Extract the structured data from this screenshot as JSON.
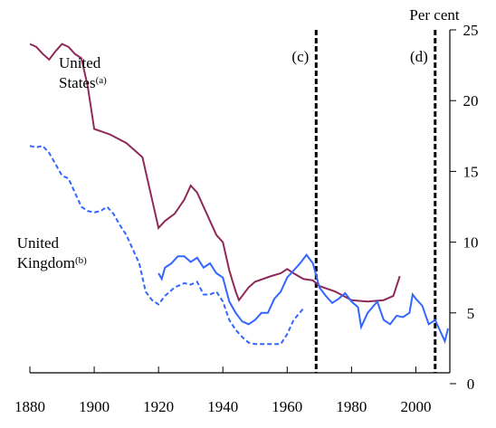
{
  "chart_data": {
    "type": "line",
    "y_axis_label": "Per cent",
    "xlim": [
      1880,
      2010
    ],
    "xticks": [
      1880,
      1900,
      1920,
      1940,
      1960,
      1980,
      2000
    ],
    "ylim": [
      0,
      25
    ],
    "yticks": [
      0,
      5,
      10,
      15,
      20,
      25
    ],
    "series": [
      {
        "color": "#8e2a5a",
        "dash": false,
        "x": [
          1880,
          1882,
          1884,
          1886,
          1888,
          1890,
          1892,
          1894,
          1896,
          1898,
          1900,
          1905,
          1910,
          1915,
          1918,
          1920,
          1922,
          1925,
          1928,
          1930,
          1932,
          1935,
          1938,
          1940,
          1942,
          1944,
          1945,
          1948,
          1950,
          1955,
          1958,
          1960,
          1962,
          1965,
          1968,
          1970,
          1975,
          1980,
          1985,
          1990,
          1993,
          1995
        ],
        "values": [
          24,
          23.8,
          23.3,
          22.9,
          23.5,
          24,
          23.8,
          23.3,
          23,
          21,
          18,
          17.6,
          17,
          16,
          13,
          11,
          11.5,
          12,
          13,
          14,
          13.5,
          12,
          10.5,
          10,
          8,
          6.5,
          5.9,
          6.8,
          7.2,
          7.6,
          7.8,
          8.1,
          7.8,
          7.4,
          7.3,
          6.9,
          6.5,
          5.9,
          5.8,
          5.9,
          6.2,
          7.6
        ]
      },
      {
        "color": "#3366ff",
        "dash": true,
        "x": [
          1880,
          1882,
          1884,
          1886,
          1888,
          1890,
          1892,
          1894,
          1896,
          1898,
          1900,
          1902,
          1904,
          1906,
          1908,
          1910,
          1912,
          1914,
          1916,
          1918,
          1920,
          1922,
          1925,
          1928,
          1930,
          1932,
          1934,
          1936,
          1938,
          1940,
          1942,
          1944,
          1946,
          1948,
          1950,
          1955,
          1958,
          1960,
          1962,
          1965
        ],
        "values": [
          16.8,
          16.7,
          16.8,
          16.3,
          15.5,
          14.7,
          14.5,
          13.5,
          12.5,
          12.2,
          12.1,
          12.2,
          12.5,
          12,
          11.2,
          10.5,
          9.5,
          8.5,
          6.5,
          5.9,
          5.6,
          6.2,
          6.8,
          7.1,
          7.0,
          7.2,
          6.3,
          6.3,
          6.5,
          5.8,
          4.5,
          3.8,
          3.3,
          2.9,
          2.8,
          2.8,
          2.8,
          3.5,
          4.5,
          5.3
        ]
      },
      {
        "color": "#3366ff",
        "dash": false,
        "x": [
          1920,
          1921,
          1922,
          1924,
          1926,
          1928,
          1930,
          1932,
          1934,
          1936,
          1938,
          1940,
          1942,
          1944,
          1946,
          1948,
          1950,
          1952,
          1954,
          1956,
          1958,
          1960,
          1962,
          1964,
          1966,
          1968,
          1970,
          1972,
          1974,
          1976,
          1978,
          1980,
          1982,
          1983,
          1985,
          1988,
          1990,
          1992,
          1994,
          1996,
          1998,
          1999,
          2000,
          2002,
          2004,
          2006,
          2008,
          2009,
          2010
        ],
        "values": [
          7.8,
          7.4,
          8.2,
          8.5,
          9,
          9,
          8.6,
          8.9,
          8.2,
          8.5,
          7.8,
          7.5,
          5.8,
          5,
          4.4,
          4.2,
          4.5,
          5,
          5,
          6,
          6.5,
          7.5,
          8,
          8.5,
          9.1,
          8.5,
          6.8,
          6.2,
          5.7,
          6,
          6.4,
          5.8,
          5.4,
          4,
          5,
          5.8,
          4.5,
          4.2,
          4.8,
          4.7,
          5,
          6.3,
          6,
          5.5,
          4.2,
          4.5,
          3.5,
          3.0,
          3.9
        ]
      }
    ],
    "annotations": [
      {
        "lines": [
          "United",
          "States"
        ],
        "note": "(a)",
        "x": 1889,
        "y": 22.3
      },
      {
        "lines": [
          "United",
          "Kingdom"
        ],
        "note": "(b)",
        "x": 1876,
        "y": 9.6
      }
    ],
    "vlines": [
      {
        "x": 1969,
        "label": "(c)"
      },
      {
        "x": 2006,
        "label": "(d)"
      }
    ]
  }
}
